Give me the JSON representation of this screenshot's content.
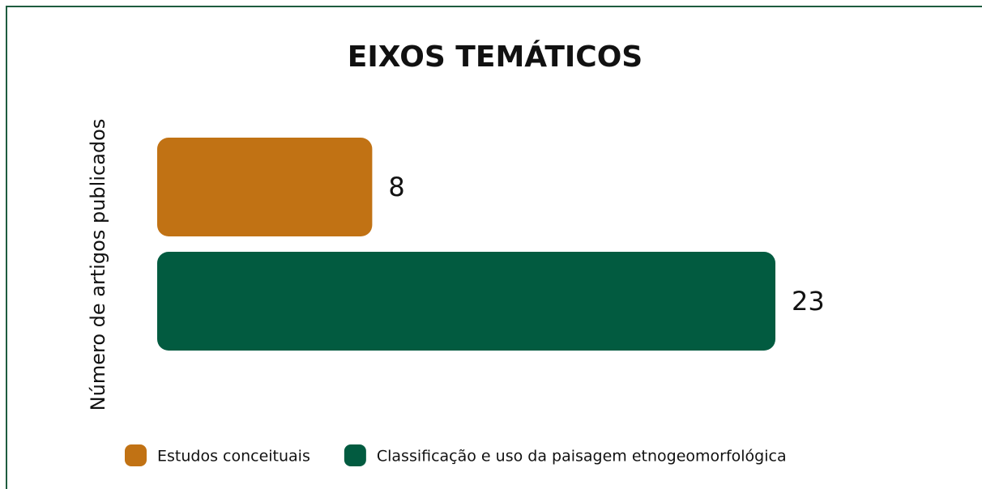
{
  "chart_data": {
    "type": "bar",
    "orientation": "horizontal",
    "title": "EIXOS TEMÁTICOS",
    "y_label": "Número de artigos publicados",
    "legend": "bottom",
    "series": [
      {
        "name": "Estudos conceituais",
        "color": "#c17214",
        "values": [
          8
        ]
      },
      {
        "name": "Classificação e uso da paisagem etnogeomorfológica",
        "color": "#025b40",
        "values": [
          23
        ]
      }
    ]
  }
}
